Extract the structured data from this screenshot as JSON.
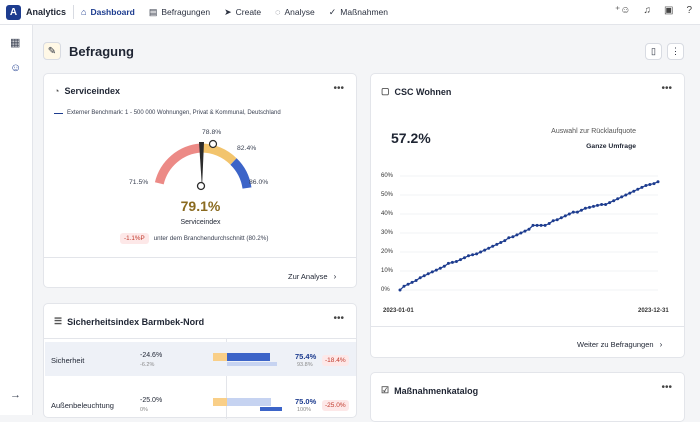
{
  "topbar": {
    "brand": "Analytics",
    "nav": [
      {
        "label": "Dashboard",
        "icon": "home-icon",
        "active": true
      },
      {
        "label": "Befragungen",
        "icon": "document-icon"
      },
      {
        "label": "Create",
        "icon": "send-icon"
      },
      {
        "label": "Analyse",
        "icon": "bulb-icon"
      },
      {
        "label": "Maßnahmen",
        "icon": "check-circle-icon"
      }
    ]
  },
  "page": {
    "title": "Befragung"
  },
  "serviceindex": {
    "title": "Serviceindex",
    "benchmark": "Externer Benchmark: 1 - 500 000 Wohnungen, Privat & Kommunal, Deutschland",
    "gauge": {
      "min_label": "71.5%",
      "mid_label": "78.8%",
      "upper_label": "82.4%",
      "max_label": "86.0%",
      "value": 79.1
    },
    "value_text": "79.1%",
    "subtitle": "Serviceindex",
    "delta_badge": "-1.1%P",
    "delta_text": "unter dem Branchendurchschnitt (80.2%)",
    "link": "Zur Analyse"
  },
  "sicherheit": {
    "title": "Sicherheitsindex Barmbek-Nord",
    "rows": [
      {
        "label": "Sicherheit",
        "v1": "-24.6%",
        "v2": "-6.2%",
        "s1": "75.4%",
        "s2": "93.8%",
        "badge": "-18.4%"
      },
      {
        "label": "Außenbeleuchtung",
        "v1": "-25.0%",
        "v2": "0%",
        "s1": "75.0%",
        "s2": "100%",
        "badge": "-25.0%"
      }
    ]
  },
  "csc": {
    "title": "CSC Wohnen",
    "value": "57.2%",
    "caption": "Auswahl zur Rücklaufquote",
    "selection": "Ganze Umfrage",
    "link": "Weiter zu Befragungen"
  },
  "chart_data": {
    "type": "line",
    "x_start": "2023-01-01",
    "x_end": "2023-12-31",
    "x_ticks": [
      "2023-01-01",
      "2023-12-31"
    ],
    "y_ticks": [
      "60%",
      "50%",
      "40%",
      "30%",
      "20%",
      "10%",
      "0%"
    ],
    "ylim": [
      0,
      60
    ],
    "values": [
      0,
      2,
      3,
      4,
      5,
      6.5,
      7.5,
      8.5,
      9.5,
      10.5,
      11.5,
      12.5,
      14,
      14.5,
      15,
      16,
      17,
      18,
      18.5,
      19,
      20,
      21,
      22,
      23,
      24,
      25,
      26,
      27.5,
      28,
      29,
      30,
      31,
      32,
      34,
      34,
      34,
      34,
      35,
      36.5,
      37,
      38,
      39,
      40,
      41,
      41,
      42,
      43,
      43.5,
      44,
      44.5,
      45,
      45,
      46,
      47,
      48,
      49,
      50,
      51,
      52,
      53,
      54,
      55,
      55.5,
      56,
      57
    ],
    "color": "#1d3c8f"
  },
  "massnahmen": {
    "title": "Maßnahmenkatalog"
  }
}
